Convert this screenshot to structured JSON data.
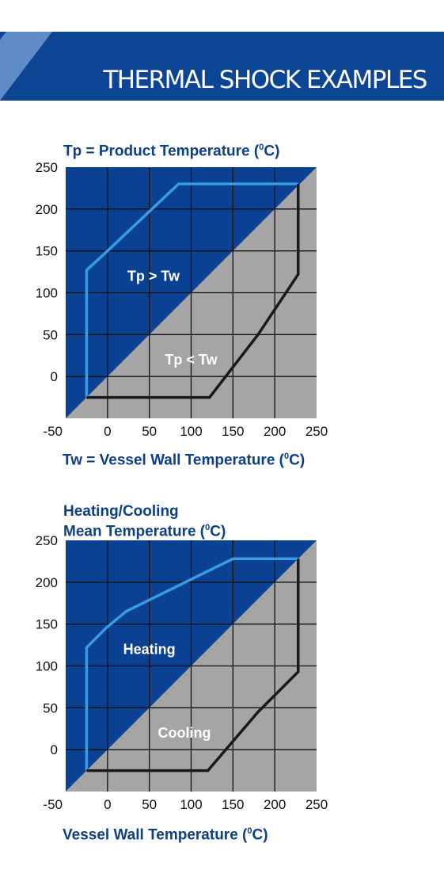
{
  "header": {
    "title": "THERMAL SHOCK EXAMPLES"
  },
  "colors": {
    "banner_blue": "#0d4595",
    "banner_light": "#5f8bc6",
    "upper_region": "#0b4193",
    "lower_region": "#a6a4a4",
    "heating_line": "#3a9ae3",
    "cooling_line": "#1a1a1a",
    "title_text": "#0d3f86"
  },
  "chart_data": [
    {
      "type": "line",
      "title_main": "Tp = Product Temperature (",
      "title_sup": "0",
      "title_end": "C)",
      "xlabel_main": "Tw = Vessel Wall Temperature (",
      "xlabel_sup": "0",
      "xlabel_end": "C)",
      "xlim": [
        -50,
        250
      ],
      "ylim": [
        -50,
        250
      ],
      "xticks": [
        "-50",
        "0",
        "50",
        "100",
        "150",
        "200",
        "250"
      ],
      "yticks": [
        "250",
        "200",
        "150",
        "100",
        "50",
        "0"
      ],
      "regions": [
        {
          "name": "Tp > Tw",
          "x": 55,
          "y": 120
        },
        {
          "name": "Tp < Tw",
          "x": 100,
          "y": 20
        }
      ],
      "series": [
        {
          "color": "#3a9ae3",
          "points": [
            [
              -25,
              -25
            ],
            [
              -25,
              127
            ],
            [
              0,
              150
            ],
            [
              85,
              230
            ],
            [
              228,
              230
            ]
          ]
        },
        {
          "color": "#1a1a1a",
          "points": [
            [
              -25,
              -25
            ],
            [
              122,
              -25
            ],
            [
              180,
              50
            ],
            [
              228,
              122
            ],
            [
              228,
              230
            ]
          ]
        }
      ]
    },
    {
      "type": "line",
      "title_line1": "Heating/Cooling",
      "title_main": "Mean Temperature (",
      "title_sup": "0",
      "title_end": "C)",
      "xlabel_main": "Vessel Wall Temperature (",
      "xlabel_sup": "0",
      "xlabel_end": "C)",
      "xlim": [
        -50,
        250
      ],
      "ylim": [
        -50,
        250
      ],
      "xticks": [
        "-50",
        "0",
        "50",
        "100",
        "150",
        "200",
        "250"
      ],
      "yticks": [
        "250",
        "200",
        "150",
        "100",
        "50",
        "0"
      ],
      "regions": [
        {
          "name": "Heating",
          "x": 50,
          "y": 120
        },
        {
          "name": "Cooling",
          "x": 92,
          "y": 20
        }
      ],
      "series": [
        {
          "color": "#3a9ae3",
          "points": [
            [
              -25,
              -25
            ],
            [
              -25,
              122
            ],
            [
              -2,
              145
            ],
            [
              22,
              165
            ],
            [
              150,
              228
            ],
            [
              228,
              228
            ]
          ]
        },
        {
          "color": "#1a1a1a",
          "points": [
            [
              -25,
              -25
            ],
            [
              120,
              -25
            ],
            [
              180,
              45
            ],
            [
              228,
              93
            ],
            [
              228,
              228
            ]
          ]
        }
      ]
    }
  ]
}
